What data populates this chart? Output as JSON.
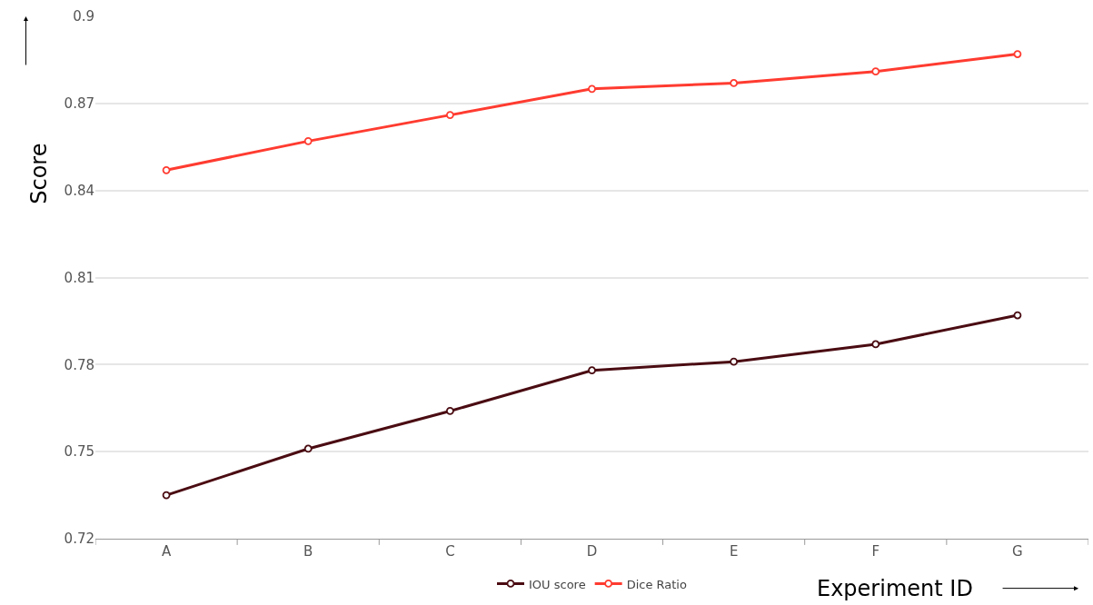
{
  "chart_data": {
    "type": "line",
    "xlabel": "Experiment ID",
    "ylabel": "Score",
    "categories": [
      "A",
      "B",
      "C",
      "D",
      "E",
      "F",
      "G"
    ],
    "series": [
      {
        "name": "IOU score",
        "color": "#4a0c12",
        "values": [
          0.735,
          0.751,
          0.764,
          0.778,
          0.781,
          0.787,
          0.797
        ]
      },
      {
        "name": "Dice Ratio",
        "color": "#ff3b30",
        "values": [
          0.847,
          0.857,
          0.866,
          0.875,
          0.877,
          0.881,
          0.887
        ]
      }
    ],
    "ylim": [
      0.72,
      0.9
    ],
    "yticks": [
      0.72,
      0.75,
      0.78,
      0.81,
      0.84,
      0.87,
      0.9
    ],
    "grid": "y",
    "legend": "bottom",
    "marker": "circle",
    "line_style": "solid"
  }
}
